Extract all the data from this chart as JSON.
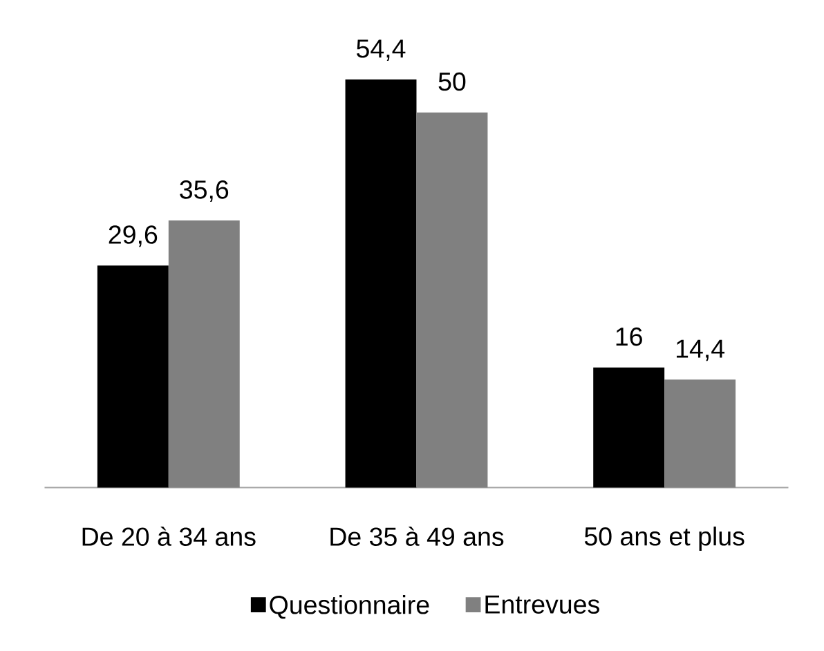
{
  "chart_data": {
    "type": "bar",
    "categories": [
      "De 20 à 34 ans",
      "De 35 à 49 ans",
      "50 ans et plus"
    ],
    "series": [
      {
        "name": "Questionnaire",
        "color": "#000000",
        "values": [
          29.6,
          54.4,
          16
        ],
        "value_labels": [
          "29,6",
          "54,4",
          "16"
        ]
      },
      {
        "name": "Entrevues",
        "color": "#808080",
        "values": [
          35.6,
          50,
          14.4
        ],
        "value_labels": [
          "35,6",
          "50",
          "14,4"
        ]
      }
    ],
    "tick_labels": "x",
    "legend": "bottom"
  }
}
